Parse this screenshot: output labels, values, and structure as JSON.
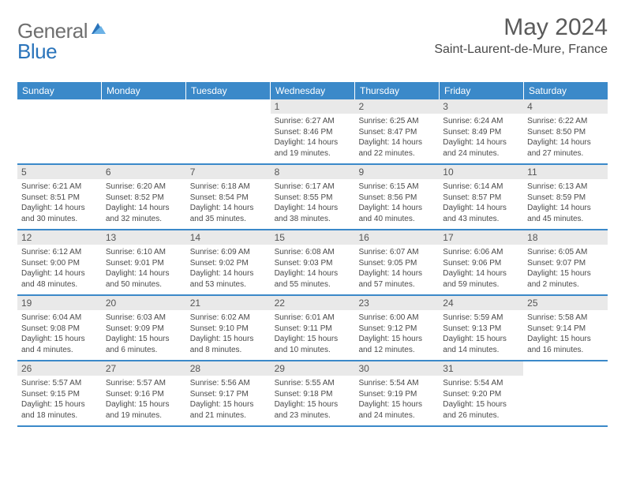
{
  "logo": {
    "general": "General",
    "blue": "Blue"
  },
  "title": "May 2024",
  "location": "Saint-Laurent-de-Mure, France",
  "colors": {
    "header_bg": "#3b89c9",
    "header_text": "#ffffff",
    "daynum_bg": "#e9e9e9",
    "text": "#4a4a4a",
    "logo_gray": "#6f6f6f",
    "logo_blue": "#2a74bb"
  },
  "day_names": [
    "Sunday",
    "Monday",
    "Tuesday",
    "Wednesday",
    "Thursday",
    "Friday",
    "Saturday"
  ],
  "weeks": [
    [
      {
        "empty": true
      },
      {
        "empty": true
      },
      {
        "empty": true
      },
      {
        "day": "1",
        "sunrise": "Sunrise: 6:27 AM",
        "sunset": "Sunset: 8:46 PM",
        "daylight1": "Daylight: 14 hours",
        "daylight2": "and 19 minutes."
      },
      {
        "day": "2",
        "sunrise": "Sunrise: 6:25 AM",
        "sunset": "Sunset: 8:47 PM",
        "daylight1": "Daylight: 14 hours",
        "daylight2": "and 22 minutes."
      },
      {
        "day": "3",
        "sunrise": "Sunrise: 6:24 AM",
        "sunset": "Sunset: 8:49 PM",
        "daylight1": "Daylight: 14 hours",
        "daylight2": "and 24 minutes."
      },
      {
        "day": "4",
        "sunrise": "Sunrise: 6:22 AM",
        "sunset": "Sunset: 8:50 PM",
        "daylight1": "Daylight: 14 hours",
        "daylight2": "and 27 minutes."
      }
    ],
    [
      {
        "day": "5",
        "sunrise": "Sunrise: 6:21 AM",
        "sunset": "Sunset: 8:51 PM",
        "daylight1": "Daylight: 14 hours",
        "daylight2": "and 30 minutes."
      },
      {
        "day": "6",
        "sunrise": "Sunrise: 6:20 AM",
        "sunset": "Sunset: 8:52 PM",
        "daylight1": "Daylight: 14 hours",
        "daylight2": "and 32 minutes."
      },
      {
        "day": "7",
        "sunrise": "Sunrise: 6:18 AM",
        "sunset": "Sunset: 8:54 PM",
        "daylight1": "Daylight: 14 hours",
        "daylight2": "and 35 minutes."
      },
      {
        "day": "8",
        "sunrise": "Sunrise: 6:17 AM",
        "sunset": "Sunset: 8:55 PM",
        "daylight1": "Daylight: 14 hours",
        "daylight2": "and 38 minutes."
      },
      {
        "day": "9",
        "sunrise": "Sunrise: 6:15 AM",
        "sunset": "Sunset: 8:56 PM",
        "daylight1": "Daylight: 14 hours",
        "daylight2": "and 40 minutes."
      },
      {
        "day": "10",
        "sunrise": "Sunrise: 6:14 AM",
        "sunset": "Sunset: 8:57 PM",
        "daylight1": "Daylight: 14 hours",
        "daylight2": "and 43 minutes."
      },
      {
        "day": "11",
        "sunrise": "Sunrise: 6:13 AM",
        "sunset": "Sunset: 8:59 PM",
        "daylight1": "Daylight: 14 hours",
        "daylight2": "and 45 minutes."
      }
    ],
    [
      {
        "day": "12",
        "sunrise": "Sunrise: 6:12 AM",
        "sunset": "Sunset: 9:00 PM",
        "daylight1": "Daylight: 14 hours",
        "daylight2": "and 48 minutes."
      },
      {
        "day": "13",
        "sunrise": "Sunrise: 6:10 AM",
        "sunset": "Sunset: 9:01 PM",
        "daylight1": "Daylight: 14 hours",
        "daylight2": "and 50 minutes."
      },
      {
        "day": "14",
        "sunrise": "Sunrise: 6:09 AM",
        "sunset": "Sunset: 9:02 PM",
        "daylight1": "Daylight: 14 hours",
        "daylight2": "and 53 minutes."
      },
      {
        "day": "15",
        "sunrise": "Sunrise: 6:08 AM",
        "sunset": "Sunset: 9:03 PM",
        "daylight1": "Daylight: 14 hours",
        "daylight2": "and 55 minutes."
      },
      {
        "day": "16",
        "sunrise": "Sunrise: 6:07 AM",
        "sunset": "Sunset: 9:05 PM",
        "daylight1": "Daylight: 14 hours",
        "daylight2": "and 57 minutes."
      },
      {
        "day": "17",
        "sunrise": "Sunrise: 6:06 AM",
        "sunset": "Sunset: 9:06 PM",
        "daylight1": "Daylight: 14 hours",
        "daylight2": "and 59 minutes."
      },
      {
        "day": "18",
        "sunrise": "Sunrise: 6:05 AM",
        "sunset": "Sunset: 9:07 PM",
        "daylight1": "Daylight: 15 hours",
        "daylight2": "and 2 minutes."
      }
    ],
    [
      {
        "day": "19",
        "sunrise": "Sunrise: 6:04 AM",
        "sunset": "Sunset: 9:08 PM",
        "daylight1": "Daylight: 15 hours",
        "daylight2": "and 4 minutes."
      },
      {
        "day": "20",
        "sunrise": "Sunrise: 6:03 AM",
        "sunset": "Sunset: 9:09 PM",
        "daylight1": "Daylight: 15 hours",
        "daylight2": "and 6 minutes."
      },
      {
        "day": "21",
        "sunrise": "Sunrise: 6:02 AM",
        "sunset": "Sunset: 9:10 PM",
        "daylight1": "Daylight: 15 hours",
        "daylight2": "and 8 minutes."
      },
      {
        "day": "22",
        "sunrise": "Sunrise: 6:01 AM",
        "sunset": "Sunset: 9:11 PM",
        "daylight1": "Daylight: 15 hours",
        "daylight2": "and 10 minutes."
      },
      {
        "day": "23",
        "sunrise": "Sunrise: 6:00 AM",
        "sunset": "Sunset: 9:12 PM",
        "daylight1": "Daylight: 15 hours",
        "daylight2": "and 12 minutes."
      },
      {
        "day": "24",
        "sunrise": "Sunrise: 5:59 AM",
        "sunset": "Sunset: 9:13 PM",
        "daylight1": "Daylight: 15 hours",
        "daylight2": "and 14 minutes."
      },
      {
        "day": "25",
        "sunrise": "Sunrise: 5:58 AM",
        "sunset": "Sunset: 9:14 PM",
        "daylight1": "Daylight: 15 hours",
        "daylight2": "and 16 minutes."
      }
    ],
    [
      {
        "day": "26",
        "sunrise": "Sunrise: 5:57 AM",
        "sunset": "Sunset: 9:15 PM",
        "daylight1": "Daylight: 15 hours",
        "daylight2": "and 18 minutes."
      },
      {
        "day": "27",
        "sunrise": "Sunrise: 5:57 AM",
        "sunset": "Sunset: 9:16 PM",
        "daylight1": "Daylight: 15 hours",
        "daylight2": "and 19 minutes."
      },
      {
        "day": "28",
        "sunrise": "Sunrise: 5:56 AM",
        "sunset": "Sunset: 9:17 PM",
        "daylight1": "Daylight: 15 hours",
        "daylight2": "and 21 minutes."
      },
      {
        "day": "29",
        "sunrise": "Sunrise: 5:55 AM",
        "sunset": "Sunset: 9:18 PM",
        "daylight1": "Daylight: 15 hours",
        "daylight2": "and 23 minutes."
      },
      {
        "day": "30",
        "sunrise": "Sunrise: 5:54 AM",
        "sunset": "Sunset: 9:19 PM",
        "daylight1": "Daylight: 15 hours",
        "daylight2": "and 24 minutes."
      },
      {
        "day": "31",
        "sunrise": "Sunrise: 5:54 AM",
        "sunset": "Sunset: 9:20 PM",
        "daylight1": "Daylight: 15 hours",
        "daylight2": "and 26 minutes."
      },
      {
        "empty": true
      }
    ]
  ]
}
